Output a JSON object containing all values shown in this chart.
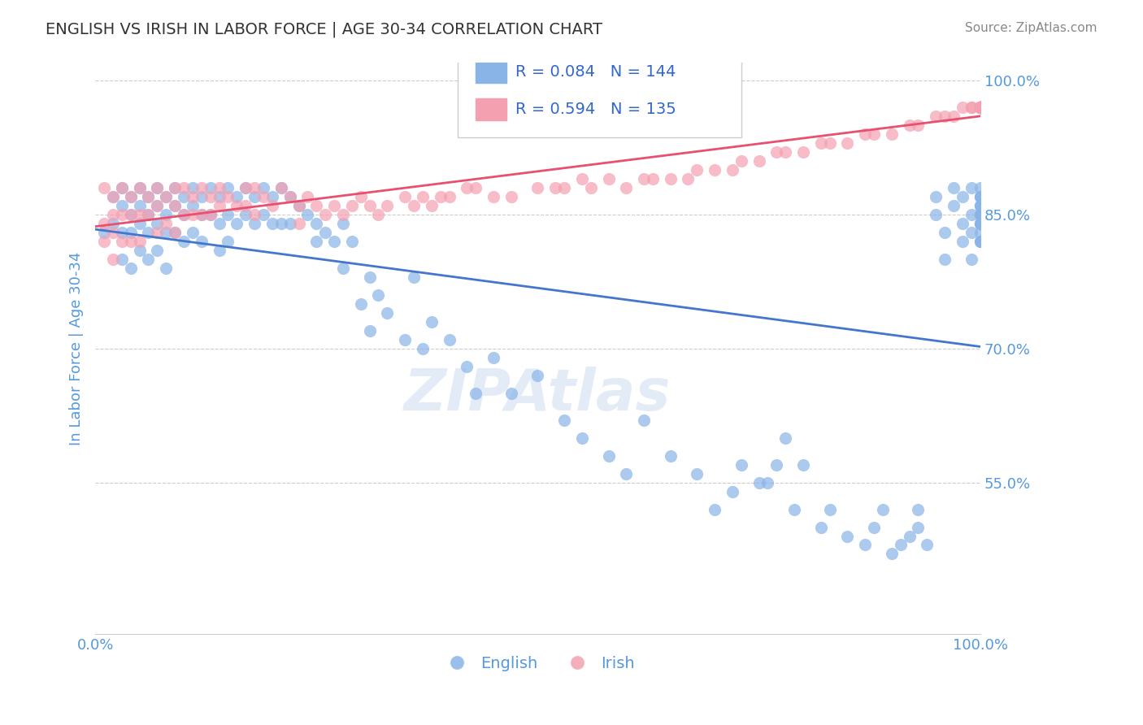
{
  "title": "ENGLISH VS IRISH IN LABOR FORCE | AGE 30-34 CORRELATION CHART",
  "source_text": "Source: ZipAtlas.com",
  "xlabel": "",
  "ylabel": "In Labor Force | Age 30-34",
  "xlim": [
    0.0,
    1.0
  ],
  "ylim": [
    0.38,
    1.02
  ],
  "right_yticks": [
    0.55,
    0.7,
    0.85,
    1.0
  ],
  "right_yticklabels": [
    "55.0%",
    "70.0%",
    "85.0%",
    "100.0%"
  ],
  "xticks": [
    0.0,
    1.0
  ],
  "xticklabels": [
    "0.0%",
    "100.0%"
  ],
  "english_color": "#89b4e8",
  "irish_color": "#f4a0b0",
  "english_line_color": "#4477cc",
  "irish_line_color": "#e85070",
  "R_english": 0.084,
  "N_english": 144,
  "R_irish": 0.594,
  "N_irish": 135,
  "marker_size": 120,
  "marker_alpha": 0.7,
  "background_color": "#ffffff",
  "title_color": "#333333",
  "axis_color": "#5599dd",
  "tick_color": "#5599dd",
  "grid_color": "#cccccc",
  "legend_text_color": "#3366cc",
  "watermark_text": "ZIPAtlas",
  "english_x": [
    0.01,
    0.02,
    0.02,
    0.03,
    0.03,
    0.03,
    0.03,
    0.04,
    0.04,
    0.04,
    0.04,
    0.05,
    0.05,
    0.05,
    0.05,
    0.06,
    0.06,
    0.06,
    0.06,
    0.07,
    0.07,
    0.07,
    0.07,
    0.08,
    0.08,
    0.08,
    0.08,
    0.09,
    0.09,
    0.09,
    0.1,
    0.1,
    0.1,
    0.11,
    0.11,
    0.11,
    0.12,
    0.12,
    0.12,
    0.13,
    0.13,
    0.14,
    0.14,
    0.14,
    0.15,
    0.15,
    0.15,
    0.16,
    0.16,
    0.17,
    0.17,
    0.18,
    0.18,
    0.19,
    0.19,
    0.2,
    0.2,
    0.21,
    0.21,
    0.22,
    0.22,
    0.23,
    0.24,
    0.25,
    0.25,
    0.26,
    0.27,
    0.28,
    0.28,
    0.29,
    0.3,
    0.31,
    0.31,
    0.32,
    0.33,
    0.35,
    0.36,
    0.37,
    0.38,
    0.4,
    0.42,
    0.43,
    0.45,
    0.47,
    0.5,
    0.53,
    0.55,
    0.58,
    0.6,
    0.62,
    0.65,
    0.68,
    0.7,
    0.72,
    0.73,
    0.75,
    0.76,
    0.77,
    0.78,
    0.79,
    0.8,
    0.82,
    0.83,
    0.85,
    0.87,
    0.88,
    0.89,
    0.9,
    0.91,
    0.92,
    0.93,
    0.93,
    0.94,
    0.95,
    0.95,
    0.96,
    0.96,
    0.97,
    0.97,
    0.98,
    0.98,
    0.98,
    0.99,
    0.99,
    0.99,
    0.99,
    1.0,
    1.0,
    1.0,
    1.0,
    1.0,
    1.0,
    1.0,
    1.0,
    1.0,
    1.0,
    1.0,
    1.0,
    1.0,
    1.0,
    1.0,
    1.0,
    1.0,
    1.0
  ],
  "english_y": [
    0.83,
    0.87,
    0.84,
    0.88,
    0.86,
    0.83,
    0.8,
    0.87,
    0.85,
    0.83,
    0.79,
    0.88,
    0.86,
    0.84,
    0.81,
    0.87,
    0.85,
    0.83,
    0.8,
    0.88,
    0.86,
    0.84,
    0.81,
    0.87,
    0.85,
    0.83,
    0.79,
    0.88,
    0.86,
    0.83,
    0.87,
    0.85,
    0.82,
    0.88,
    0.86,
    0.83,
    0.87,
    0.85,
    0.82,
    0.88,
    0.85,
    0.87,
    0.84,
    0.81,
    0.88,
    0.85,
    0.82,
    0.87,
    0.84,
    0.88,
    0.85,
    0.87,
    0.84,
    0.88,
    0.85,
    0.87,
    0.84,
    0.88,
    0.84,
    0.87,
    0.84,
    0.86,
    0.85,
    0.84,
    0.82,
    0.83,
    0.82,
    0.84,
    0.79,
    0.82,
    0.75,
    0.78,
    0.72,
    0.76,
    0.74,
    0.71,
    0.78,
    0.7,
    0.73,
    0.71,
    0.68,
    0.65,
    0.69,
    0.65,
    0.67,
    0.62,
    0.6,
    0.58,
    0.56,
    0.62,
    0.58,
    0.56,
    0.52,
    0.54,
    0.57,
    0.55,
    0.55,
    0.57,
    0.6,
    0.52,
    0.57,
    0.5,
    0.52,
    0.49,
    0.48,
    0.5,
    0.52,
    0.47,
    0.48,
    0.49,
    0.5,
    0.52,
    0.48,
    0.87,
    0.85,
    0.83,
    0.8,
    0.88,
    0.86,
    0.84,
    0.82,
    0.87,
    0.85,
    0.83,
    0.8,
    0.88,
    0.86,
    0.84,
    0.82,
    0.87,
    0.85,
    0.83,
    0.88,
    0.86,
    0.84,
    0.82,
    0.87,
    0.85,
    0.84,
    0.86,
    0.84,
    0.82,
    0.87,
    0.85
  ],
  "irish_x": [
    0.01,
    0.01,
    0.01,
    0.02,
    0.02,
    0.02,
    0.02,
    0.03,
    0.03,
    0.03,
    0.04,
    0.04,
    0.04,
    0.05,
    0.05,
    0.05,
    0.06,
    0.06,
    0.07,
    0.07,
    0.07,
    0.08,
    0.08,
    0.09,
    0.09,
    0.09,
    0.1,
    0.1,
    0.11,
    0.11,
    0.12,
    0.12,
    0.13,
    0.13,
    0.14,
    0.14,
    0.15,
    0.16,
    0.17,
    0.17,
    0.18,
    0.18,
    0.19,
    0.2,
    0.21,
    0.22,
    0.23,
    0.23,
    0.24,
    0.25,
    0.26,
    0.27,
    0.28,
    0.29,
    0.3,
    0.31,
    0.32,
    0.33,
    0.35,
    0.36,
    0.37,
    0.38,
    0.39,
    0.4,
    0.42,
    0.43,
    0.45,
    0.47,
    0.5,
    0.52,
    0.53,
    0.55,
    0.56,
    0.58,
    0.6,
    0.62,
    0.63,
    0.65,
    0.67,
    0.68,
    0.7,
    0.72,
    0.73,
    0.75,
    0.77,
    0.78,
    0.8,
    0.82,
    0.83,
    0.85,
    0.87,
    0.88,
    0.9,
    0.92,
    0.93,
    0.95,
    0.96,
    0.97,
    0.98,
    0.99,
    0.99,
    1.0,
    1.0,
    1.0,
    1.0,
    1.0,
    1.0,
    1.0,
    1.0,
    1.0,
    1.0,
    1.0,
    1.0,
    1.0,
    1.0,
    1.0,
    1.0,
    1.0,
    1.0,
    1.0,
    1.0,
    1.0,
    1.0,
    1.0,
    1.0,
    1.0,
    1.0,
    1.0,
    1.0,
    1.0,
    1.0,
    1.0,
    1.0,
    1.0,
    1.0
  ],
  "irish_y": [
    0.84,
    0.82,
    0.88,
    0.87,
    0.85,
    0.83,
    0.8,
    0.88,
    0.85,
    0.82,
    0.87,
    0.85,
    0.82,
    0.88,
    0.85,
    0.82,
    0.87,
    0.85,
    0.88,
    0.86,
    0.83,
    0.87,
    0.84,
    0.88,
    0.86,
    0.83,
    0.88,
    0.85,
    0.87,
    0.85,
    0.88,
    0.85,
    0.87,
    0.85,
    0.88,
    0.86,
    0.87,
    0.86,
    0.88,
    0.86,
    0.88,
    0.85,
    0.87,
    0.86,
    0.88,
    0.87,
    0.86,
    0.84,
    0.87,
    0.86,
    0.85,
    0.86,
    0.85,
    0.86,
    0.87,
    0.86,
    0.85,
    0.86,
    0.87,
    0.86,
    0.87,
    0.86,
    0.87,
    0.87,
    0.88,
    0.88,
    0.87,
    0.87,
    0.88,
    0.88,
    0.88,
    0.89,
    0.88,
    0.89,
    0.88,
    0.89,
    0.89,
    0.89,
    0.89,
    0.9,
    0.9,
    0.9,
    0.91,
    0.91,
    0.92,
    0.92,
    0.92,
    0.93,
    0.93,
    0.93,
    0.94,
    0.94,
    0.94,
    0.95,
    0.95,
    0.96,
    0.96,
    0.96,
    0.97,
    0.97,
    0.97,
    0.97,
    0.97,
    0.97,
    0.97,
    0.97,
    0.97,
    0.97,
    0.97,
    0.97,
    0.97,
    0.97,
    0.97,
    0.97,
    0.97,
    0.97,
    0.97,
    0.97,
    0.97,
    0.97,
    0.97,
    0.97,
    0.97,
    0.97,
    0.97,
    0.97,
    0.97,
    0.97,
    0.97,
    0.97,
    0.97,
    0.97,
    0.97,
    0.97,
    0.97
  ]
}
